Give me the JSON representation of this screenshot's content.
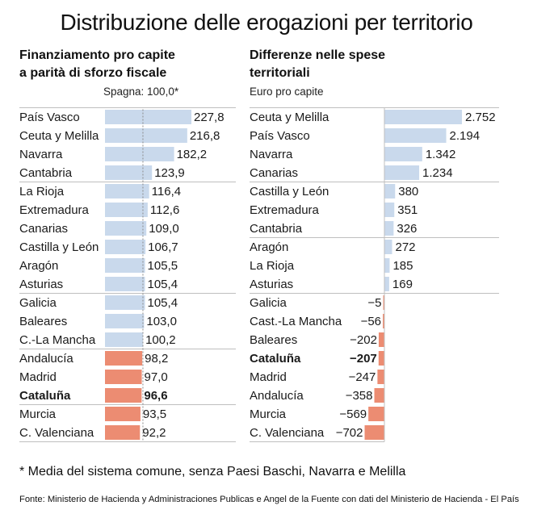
{
  "title": "Distribuzione delle erogazioni per territorio",
  "footnote": "* Media del sistema comune, senza Paesi Baschi, Navarra e Melilla",
  "source": "Fonte: Ministerio de Hacienda y Administraciones Publicas e Angel de la Fuente con dati del Ministerio de Hacienda - El País",
  "colors": {
    "above": "#c9d9ec",
    "below": "#ec8c72",
    "text": "#1a1a1a",
    "grid": "#bfbfbf",
    "ref_line": "#8a8a8a"
  },
  "chart_data": [
    {
      "type": "bar",
      "orientation": "horizontal",
      "title": "Finanziamento pro capite a parità di sforzo fiscale",
      "title_lines": [
        "Finanziamento pro capite",
        "a parità di sforzo fiscale"
      ],
      "note": "Spagna: 100,0*",
      "reference_value": 100,
      "categories": [
        "País Vasco",
        "Ceuta y Melilla",
        "Navarra",
        "Cantabria",
        "La Rioja",
        "Extremadura",
        "Canarias",
        "Castilla y León",
        "Aragón",
        "Asturias",
        "Galicia",
        "Baleares",
        "C.-La Mancha",
        "Andalucía",
        "Madrid",
        "Cataluña",
        "Murcia",
        "C. Valenciana"
      ],
      "values": [
        227.8,
        216.8,
        182.2,
        123.9,
        116.4,
        112.6,
        109.0,
        106.7,
        105.5,
        105.4,
        105.4,
        103.0,
        100.2,
        98.2,
        97.0,
        96.6,
        93.5,
        92.2
      ],
      "labels": [
        "227,8",
        "216,8",
        "182,2",
        "123,9",
        "116,4",
        "112,6",
        "109,0",
        "106,7",
        "105,5",
        "105,4",
        "105,4",
        "103,0",
        "100,2",
        "98,2",
        "97,0",
        "96,6",
        "93,5",
        "92,2"
      ],
      "highlight": "Cataluña"
    },
    {
      "type": "bar",
      "orientation": "horizontal",
      "title": "Differenze nelle spese territoriali",
      "title_lines": [
        "Differenze nelle spese",
        "territoriali"
      ],
      "note": "Euro pro capite",
      "categories": [
        "Ceuta y Melilla",
        "País Vasco",
        "Navarra",
        "Canarias",
        "Castilla y León",
        "Extremadura",
        "Cantabria",
        "Aragón",
        "La Rioja",
        "Asturias",
        "Galicia",
        "Cast.-La Mancha",
        "Baleares",
        "Cataluña",
        "Madrid",
        "Andalucía",
        "Murcia",
        "C. Valenciana"
      ],
      "values": [
        2752,
        2194,
        1342,
        1234,
        380,
        351,
        326,
        272,
        185,
        169,
        -5,
        -56,
        -202,
        -207,
        -247,
        -358,
        -569,
        -702
      ],
      "labels": [
        "2.752",
        "2.194",
        "1.342",
        "1.234",
        "380",
        "351",
        "326",
        "272",
        "185",
        "169",
        "−5",
        "−56",
        "−202",
        "−207",
        "−247",
        "−358",
        "−569",
        "−702"
      ],
      "highlight": "Cataluña"
    }
  ]
}
